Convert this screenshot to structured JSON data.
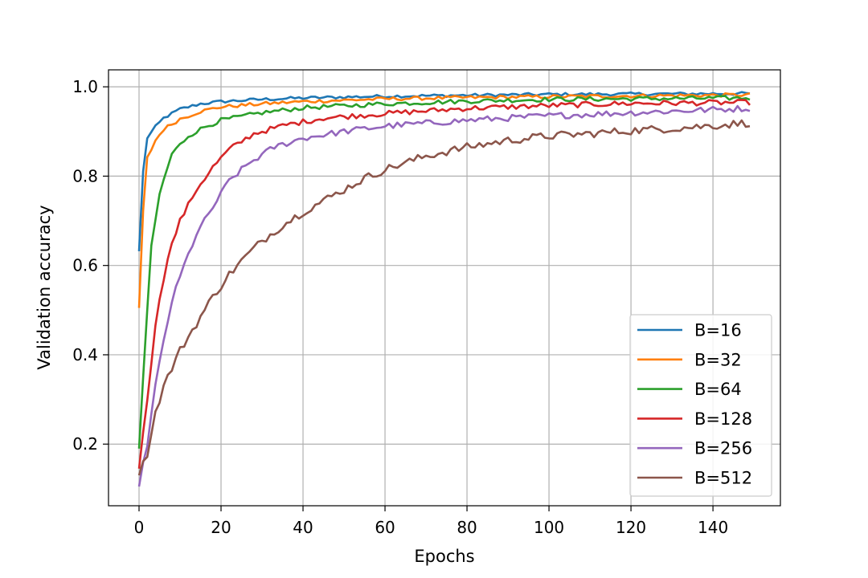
{
  "chart_data": {
    "type": "line",
    "title": "",
    "xlabel": "Epochs",
    "ylabel": "Validation accuracy",
    "xlim": [
      -7.45,
      156.45
    ],
    "ylim": [
      0.062,
      1.038
    ],
    "xticks": [
      0,
      20,
      40,
      60,
      80,
      100,
      120,
      140
    ],
    "yticks": [
      0.2,
      0.4,
      0.6,
      0.8,
      1.0
    ],
    "ytick_labels": [
      "0.2",
      "0.4",
      "0.6",
      "0.8",
      "1.0"
    ],
    "grid": true,
    "legend_position": "lower-right",
    "epochs": 150,
    "series": [
      {
        "name": "B=16",
        "color": "#1f77b4",
        "anchors": [
          [
            0,
            0.632
          ],
          [
            1,
            0.81
          ],
          [
            2,
            0.886
          ],
          [
            4,
            0.91
          ],
          [
            6,
            0.93
          ],
          [
            10,
            0.95
          ],
          [
            15,
            0.962
          ],
          [
            20,
            0.967
          ],
          [
            30,
            0.972
          ],
          [
            40,
            0.975
          ],
          [
            60,
            0.979
          ],
          [
            80,
            0.981
          ],
          [
            100,
            0.983
          ],
          [
            149,
            0.985
          ]
        ]
      },
      {
        "name": "B=32",
        "color": "#ff7f0e",
        "anchors": [
          [
            0,
            0.505
          ],
          [
            1,
            0.72
          ],
          [
            2,
            0.84
          ],
          [
            4,
            0.88
          ],
          [
            6,
            0.905
          ],
          [
            10,
            0.928
          ],
          [
            15,
            0.945
          ],
          [
            20,
            0.955
          ],
          [
            30,
            0.962
          ],
          [
            40,
            0.967
          ],
          [
            60,
            0.973
          ],
          [
            80,
            0.976
          ],
          [
            100,
            0.978
          ],
          [
            149,
            0.982
          ]
        ]
      },
      {
        "name": "B=64",
        "color": "#2ca02c",
        "anchors": [
          [
            0,
            0.19
          ],
          [
            1,
            0.35
          ],
          [
            2,
            0.5
          ],
          [
            3,
            0.64
          ],
          [
            5,
            0.76
          ],
          [
            8,
            0.85
          ],
          [
            12,
            0.89
          ],
          [
            16,
            0.91
          ],
          [
            20,
            0.925
          ],
          [
            30,
            0.942
          ],
          [
            40,
            0.953
          ],
          [
            60,
            0.962
          ],
          [
            80,
            0.968
          ],
          [
            100,
            0.972
          ],
          [
            149,
            0.975
          ]
        ]
      },
      {
        "name": "B=128",
        "color": "#d62728",
        "anchors": [
          [
            0,
            0.145
          ],
          [
            2,
            0.3
          ],
          [
            4,
            0.47
          ],
          [
            7,
            0.62
          ],
          [
            10,
            0.7
          ],
          [
            14,
            0.77
          ],
          [
            18,
            0.82
          ],
          [
            22,
            0.86
          ],
          [
            28,
            0.895
          ],
          [
            36,
            0.915
          ],
          [
            45,
            0.93
          ],
          [
            60,
            0.94
          ],
          [
            80,
            0.952
          ],
          [
            100,
            0.958
          ],
          [
            120,
            0.963
          ],
          [
            149,
            0.965
          ]
        ]
      },
      {
        "name": "B=256",
        "color": "#9467bd",
        "anchors": [
          [
            0,
            0.105
          ],
          [
            2,
            0.2
          ],
          [
            4,
            0.33
          ],
          [
            6,
            0.43
          ],
          [
            8,
            0.52
          ],
          [
            11,
            0.6
          ],
          [
            14,
            0.67
          ],
          [
            18,
            0.73
          ],
          [
            22,
            0.79
          ],
          [
            27,
            0.83
          ],
          [
            33,
            0.865
          ],
          [
            40,
            0.885
          ],
          [
            50,
            0.9
          ],
          [
            60,
            0.912
          ],
          [
            80,
            0.925
          ],
          [
            100,
            0.935
          ],
          [
            120,
            0.942
          ],
          [
            149,
            0.952
          ]
        ]
      },
      {
        "name": "B=512",
        "color": "#8c564b",
        "anchors": [
          [
            0,
            0.13
          ],
          [
            2,
            0.18
          ],
          [
            4,
            0.27
          ],
          [
            6,
            0.33
          ],
          [
            8,
            0.37
          ],
          [
            10,
            0.41
          ],
          [
            14,
            0.47
          ],
          [
            18,
            0.53
          ],
          [
            22,
            0.58
          ],
          [
            26,
            0.62
          ],
          [
            30,
            0.655
          ],
          [
            35,
            0.69
          ],
          [
            40,
            0.72
          ],
          [
            45,
            0.745
          ],
          [
            50,
            0.77
          ],
          [
            55,
            0.795
          ],
          [
            60,
            0.815
          ],
          [
            70,
            0.845
          ],
          [
            80,
            0.865
          ],
          [
            90,
            0.88
          ],
          [
            100,
            0.89
          ],
          [
            110,
            0.895
          ],
          [
            120,
            0.902
          ],
          [
            130,
            0.907
          ],
          [
            140,
            0.913
          ],
          [
            149,
            0.92
          ]
        ]
      }
    ]
  }
}
